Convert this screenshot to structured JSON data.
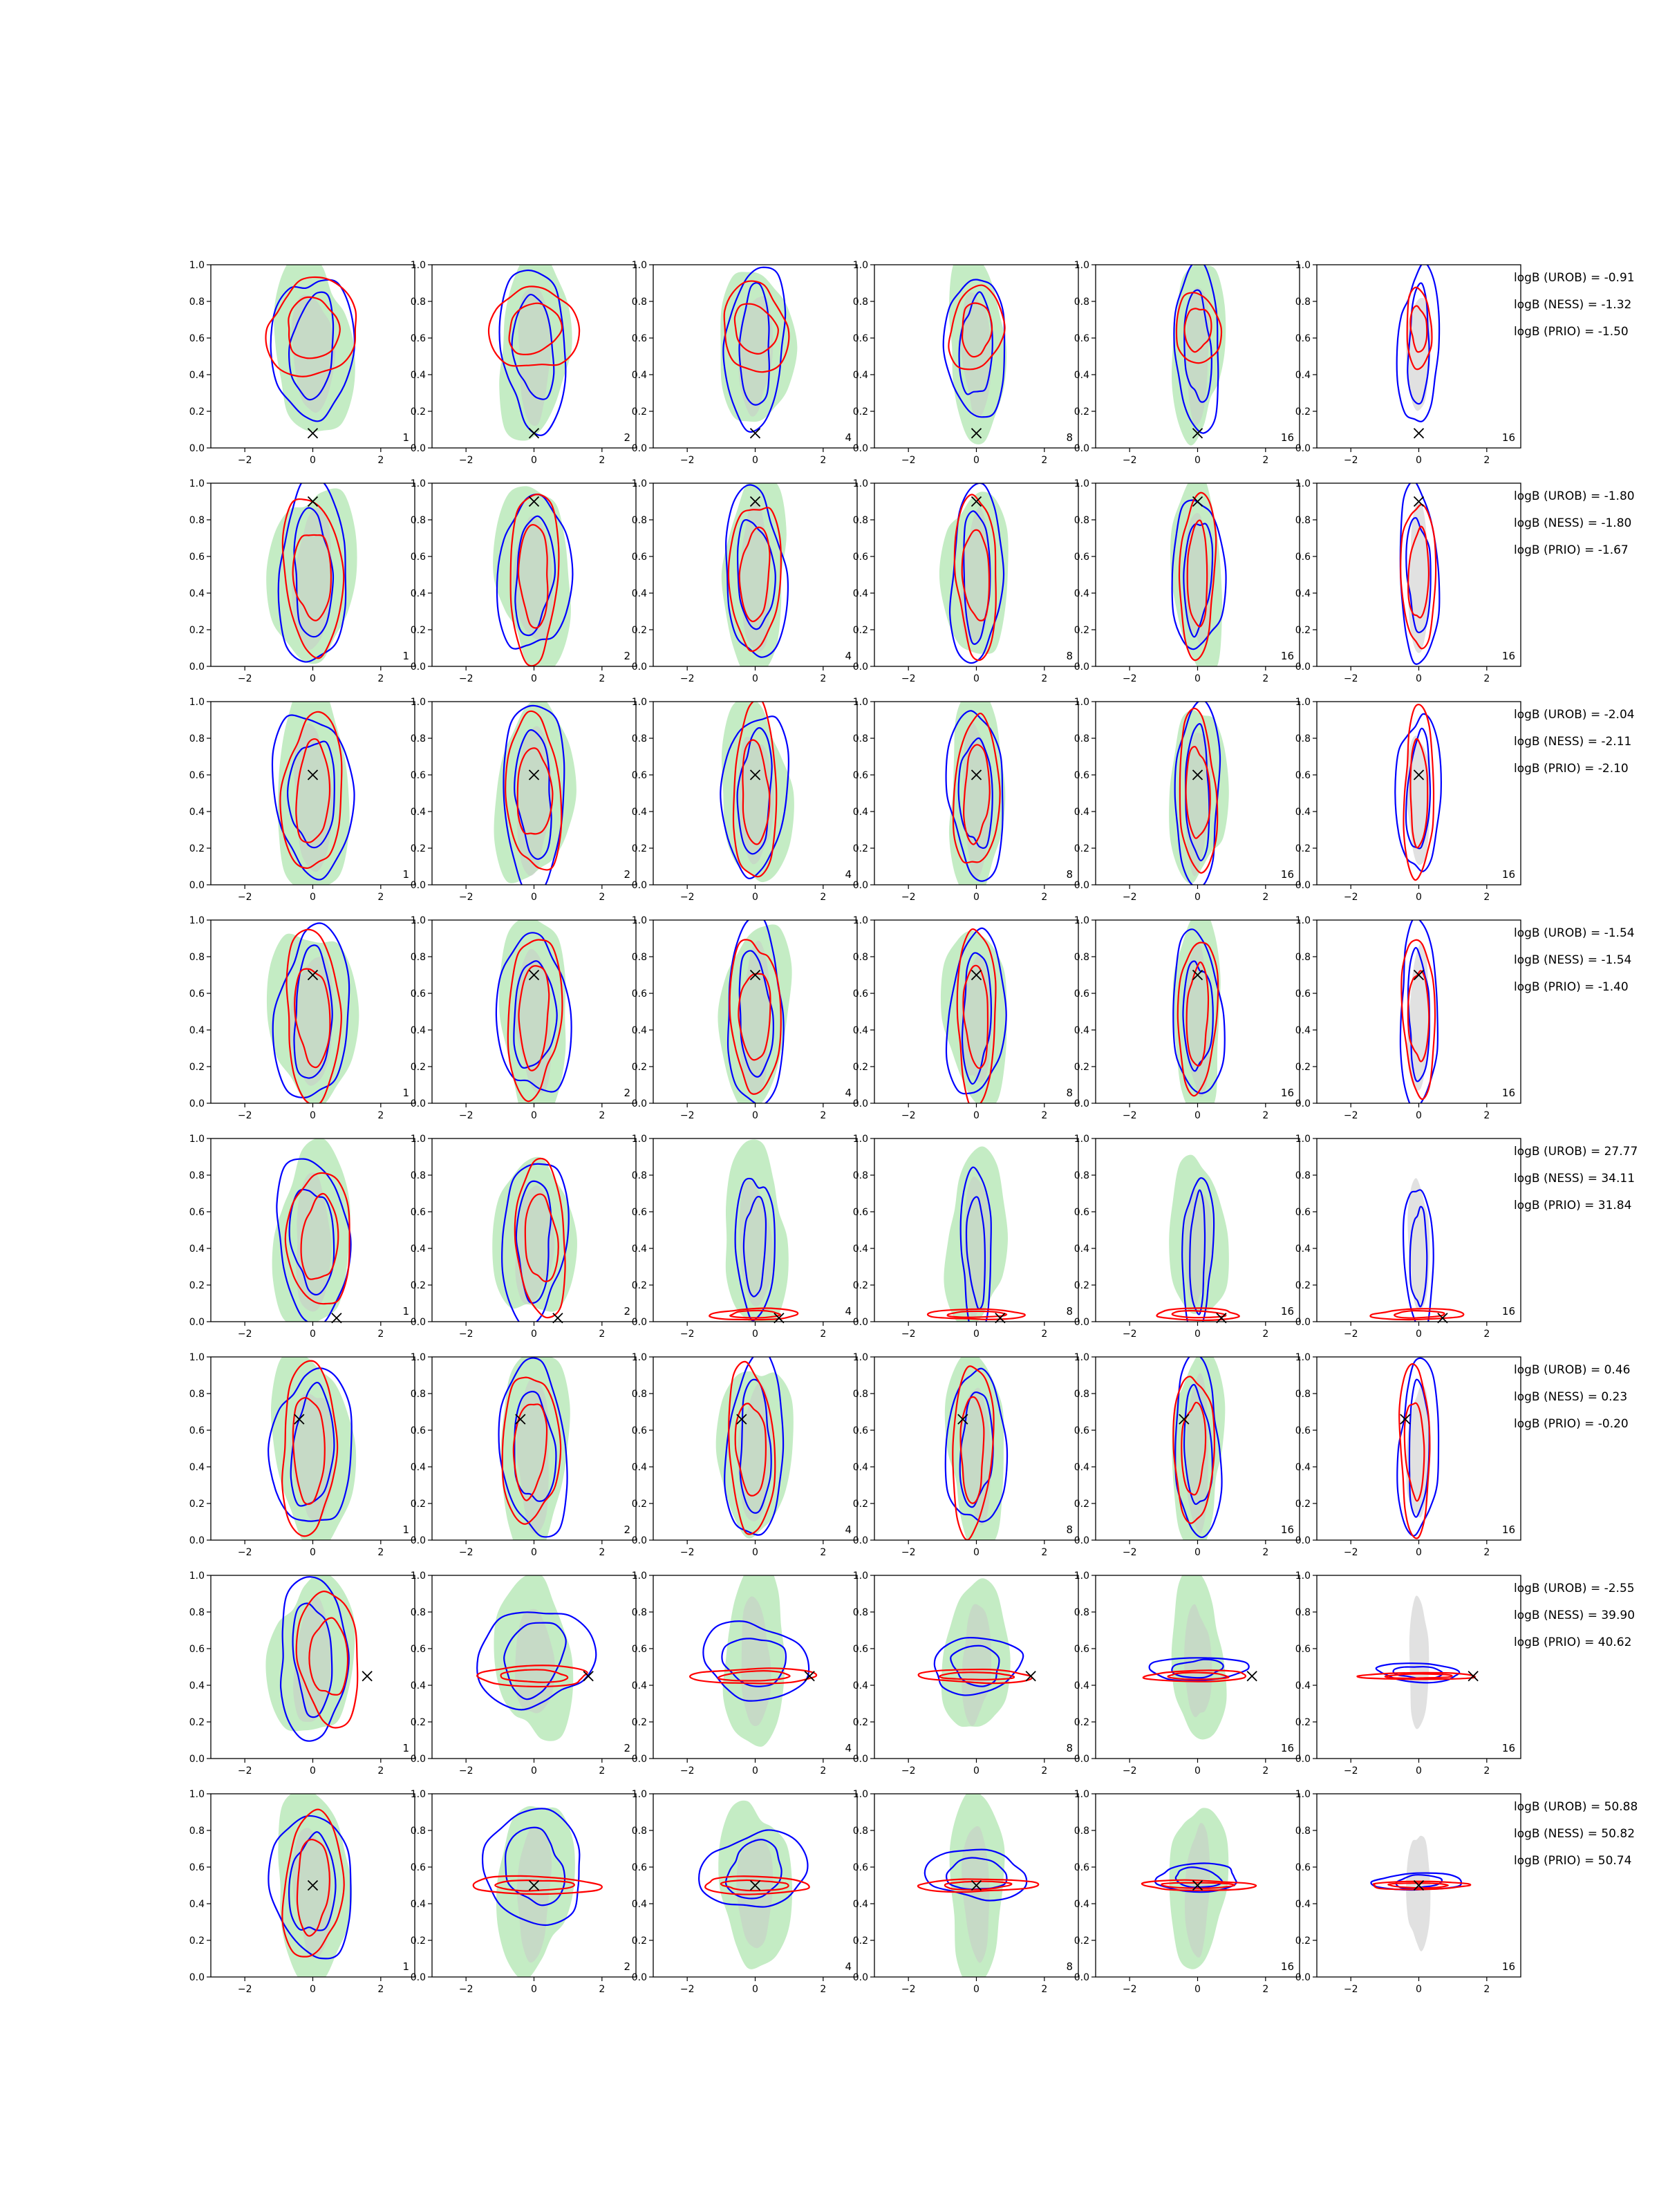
{
  "figure": {
    "x_ticks": [
      -2,
      0,
      2
    ],
    "y_ticks": [
      0.0,
      0.2,
      0.4,
      0.6,
      0.8,
      1.0
    ],
    "y_tick_labels": [
      "0.0",
      "0.2",
      "0.4",
      "0.6",
      "0.8",
      "1.0"
    ],
    "x_tick_labels": [
      "−2",
      "0",
      "2"
    ],
    "colors": {
      "green_fill": "#c4ecc4",
      "grey_fill": "#c8c8c8",
      "blue_contour": "#0000ff",
      "red_contour": "#ff0000",
      "marker": "#000000"
    }
  },
  "chart_data": {
    "type": "contour",
    "layout": "grid 8 rows x 6 columns of small-multiple contour panels",
    "xlim": [
      -3,
      3
    ],
    "ylim": [
      0,
      1
    ],
    "column_labels": [
      "1",
      "2",
      "4",
      "8",
      "16",
      "16"
    ],
    "rows": [
      {
        "marker": [
          0.0,
          0.08
        ],
        "annotations": [
          "logB (UROB) = -0.91",
          "logB (NESS) = -1.32",
          "logB (PRIO) = -1.50"
        ]
      },
      {
        "marker": [
          0.0,
          0.9
        ],
        "annotations": [
          "logB (UROB) = -1.80",
          "logB (NESS) = -1.80",
          "logB (PRIO) = -1.67"
        ]
      },
      {
        "marker": [
          0.0,
          0.6
        ],
        "annotations": [
          "logB (UROB) = -2.04",
          "logB (NESS) = -2.11",
          "logB (PRIO) = -2.10"
        ]
      },
      {
        "marker": [
          0.0,
          0.7
        ],
        "annotations": [
          "logB (UROB) = -1.54",
          "logB (NESS) = -1.54",
          "logB (PRIO) = -1.40"
        ]
      },
      {
        "marker": [
          0.7,
          0.02
        ],
        "annotations": [
          "logB (UROB) = 27.77",
          "logB (NESS) = 34.11",
          "logB (PRIO) = 31.84"
        ]
      },
      {
        "marker": [
          -0.4,
          0.66
        ],
        "annotations": [
          "logB (UROB) = 0.46",
          "logB (NESS) = 0.23",
          "logB (PRIO) = -0.20"
        ]
      },
      {
        "marker": [
          1.6,
          0.45
        ],
        "annotations": [
          "logB (UROB) = -2.55",
          "logB (NESS) = 39.90",
          "logB (PRIO) = 40.62"
        ]
      },
      {
        "marker": [
          0.0,
          0.5
        ],
        "annotations": [
          "logB (UROB) = 50.88",
          "logB (NESS) = 50.82",
          "logB (PRIO) = 50.74"
        ]
      }
    ]
  }
}
